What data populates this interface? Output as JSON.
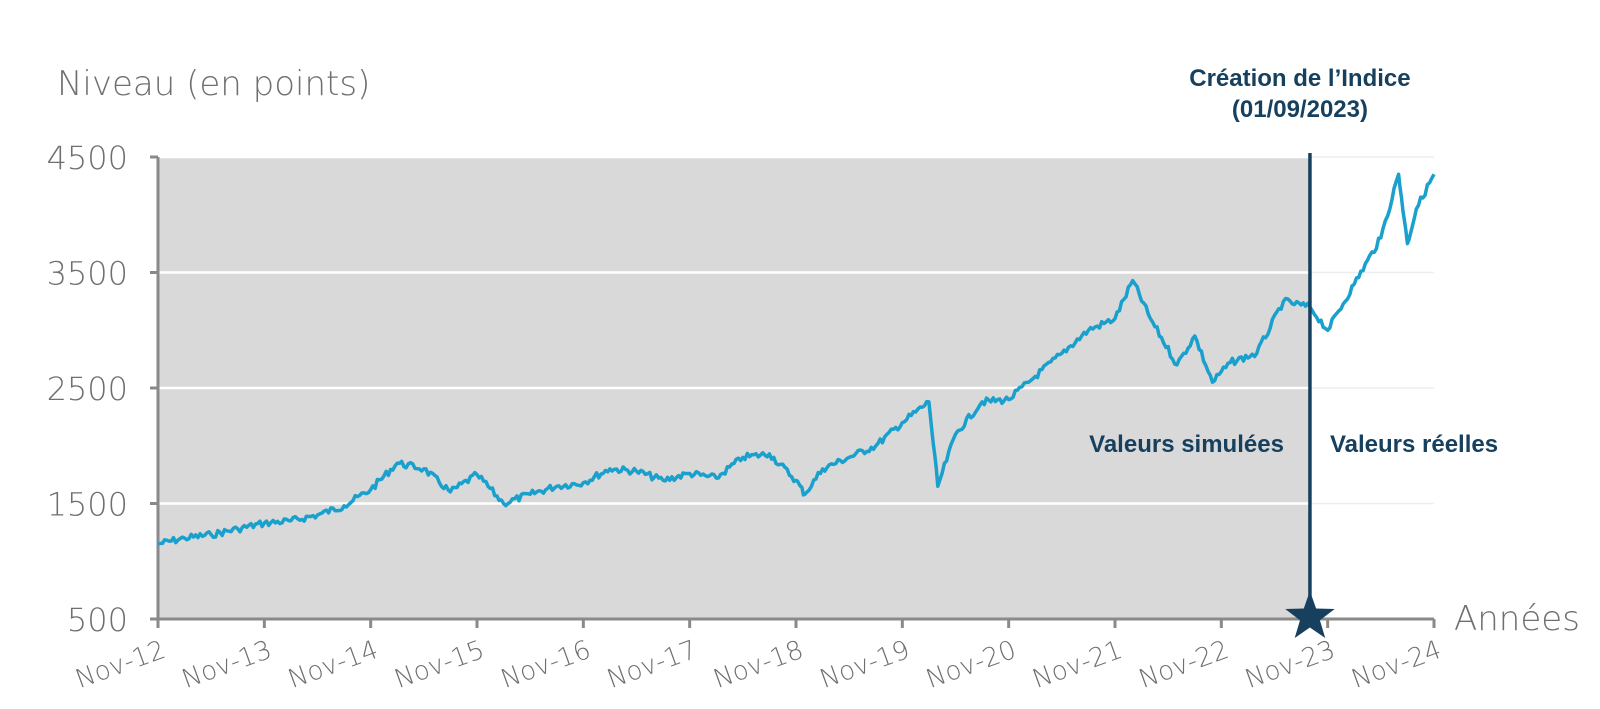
{
  "colors": {
    "series": "#1aa0cc",
    "marker": "#16405e",
    "plot_background_simulated": "#d9d9d9",
    "axis": "#8a8a8a",
    "grid": "#ffffff",
    "text": "#6f6f6f"
  },
  "chart_data": {
    "type": "line",
    "ylabel": "Niveau (en points)",
    "xlabel": "Années",
    "ylim": [
      500,
      4500
    ],
    "yticks": [
      500,
      1500,
      2500,
      3500,
      4500
    ],
    "xlim": [
      "2012-11",
      "2024-11"
    ],
    "xticks": [
      "Nov-12",
      "Nov-13",
      "Nov-14",
      "Nov-15",
      "Nov-16",
      "Nov-17",
      "Nov-18",
      "Nov-19",
      "Nov-20",
      "Nov-21",
      "Nov-22",
      "Nov-23",
      "Nov-24"
    ],
    "grid": true,
    "shaded_region": {
      "from": "2012-11",
      "to": "2023-09",
      "label": "Valeurs simulées"
    },
    "unshaded_region": {
      "from": "2023-09",
      "to": "2024-11",
      "label": "Valeurs réelles"
    },
    "vertical_marker": {
      "date": "2023-09",
      "label_line1": "Création de l’Indice",
      "label_line2": "(01/09/2023)"
    },
    "series": [
      {
        "x": [
          "2012-11",
          "2013-02",
          "2013-05",
          "2013-08",
          "2013-11",
          "2014-02",
          "2014-05",
          "2014-08",
          "2014-11",
          "2015-02",
          "2015-05",
          "2015-08",
          "2015-11",
          "2016-02",
          "2016-05",
          "2016-08",
          "2016-11",
          "2017-02",
          "2017-05",
          "2017-08",
          "2017-11",
          "2018-02",
          "2018-05",
          "2018-08",
          "2018-11",
          "2018-12",
          "2019-02",
          "2019-05",
          "2019-08",
          "2019-11",
          "2020-02",
          "2020-03",
          "2020-05",
          "2020-08",
          "2020-11",
          "2021-02",
          "2021-05",
          "2021-08",
          "2021-11",
          "2022-01",
          "2022-03",
          "2022-06",
          "2022-08",
          "2022-10",
          "2022-12",
          "2023-03",
          "2023-06",
          "2023-09",
          "2023-11",
          "2024-02",
          "2024-05",
          "2024-07",
          "2024-08",
          "2024-09",
          "2024-11"
        ],
        "values": [
          1150,
          1200,
          1230,
          1280,
          1330,
          1350,
          1400,
          1480,
          1620,
          1850,
          1800,
          1600,
          1750,
          1500,
          1580,
          1650,
          1680,
          1800,
          1780,
          1700,
          1760,
          1720,
          1900,
          1930,
          1700,
          1580,
          1800,
          1900,
          2000,
          2200,
          2380,
          1650,
          2100,
          2380,
          2400,
          2600,
          2800,
          3000,
          3100,
          3430,
          3100,
          2700,
          2950,
          2550,
          2720,
          2800,
          3250,
          3200,
          3000,
          3400,
          3800,
          4350,
          3750,
          4050,
          4350
        ]
      }
    ]
  }
}
